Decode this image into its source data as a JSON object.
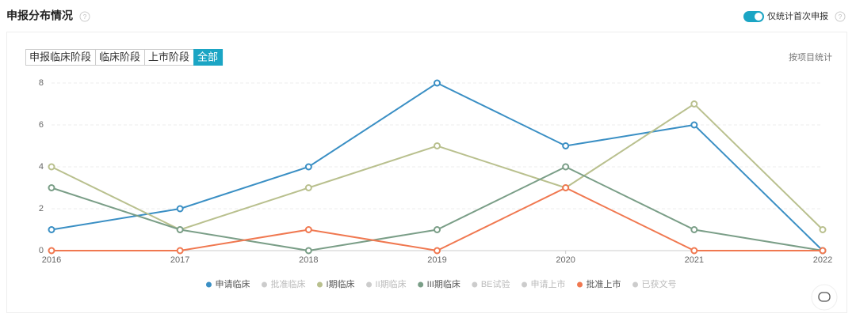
{
  "header": {
    "title": "申报分布情况",
    "toggle_label": "仅统计首次申报"
  },
  "tabs": [
    "申报临床阶段",
    "临床阶段",
    "上市阶段",
    "全部"
  ],
  "active_tab": 3,
  "mode_label": "按项目统计",
  "chart_data": {
    "type": "line",
    "x": [
      2016,
      2017,
      2018,
      2019,
      2020,
      2021,
      2022
    ],
    "xlim": [
      2016,
      2022
    ],
    "xticks": [
      2016,
      2017,
      2018,
      2019,
      2020,
      2021,
      2022
    ],
    "ylim": [
      0,
      8.2
    ],
    "yticks": [
      0,
      2,
      4,
      6,
      8
    ],
    "grid": true,
    "legend": "bottom",
    "series": [
      {
        "name": "申请临床",
        "color": "#3a8fc4",
        "values": [
          1,
          2,
          4,
          8,
          5,
          6,
          0
        ]
      },
      {
        "name": "批准临床",
        "color": "#cccccc",
        "hidden": true
      },
      {
        "name": "I期临床",
        "color": "#b9c08e",
        "values": [
          4,
          1,
          3,
          5,
          3,
          7,
          1
        ]
      },
      {
        "name": "II期临床",
        "color": "#cccccc",
        "hidden": true
      },
      {
        "name": "III期临床",
        "color": "#7a9e87",
        "values": [
          3,
          1,
          0,
          1,
          4,
          1,
          0
        ]
      },
      {
        "name": "BE试验",
        "color": "#cccccc",
        "hidden": true
      },
      {
        "name": "申请上市",
        "color": "#cccccc",
        "hidden": true
      },
      {
        "name": "批准上市",
        "color": "#f07850",
        "values": [
          0,
          0,
          1,
          0,
          3,
          0,
          0
        ]
      },
      {
        "name": "已获文号",
        "color": "#cccccc",
        "hidden": true
      }
    ]
  }
}
